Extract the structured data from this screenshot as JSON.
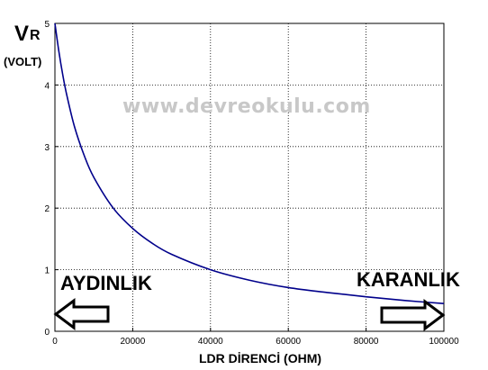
{
  "chart_data": {
    "type": "line",
    "ylabel": "V",
    "ylabel_sub": "R",
    "yunit": "(VOLT)",
    "xlabel": "LDR DİRENCİ (OHM)",
    "xlim": [
      0,
      100000
    ],
    "ylim": [
      0,
      5
    ],
    "xticks": [
      0,
      20000,
      40000,
      60000,
      80000,
      100000
    ],
    "yticks": [
      0,
      1,
      2,
      3,
      4,
      5
    ],
    "grid": true,
    "line_color": "#00008b",
    "series": [
      {
        "x": [
          0,
          1000,
          2000,
          3000,
          5000,
          7500,
          10000,
          15000,
          20000,
          25000,
          30000,
          40000,
          50000,
          60000,
          70000,
          80000,
          90000,
          100000
        ],
        "values": [
          5.0,
          4.55,
          4.17,
          3.85,
          3.33,
          2.86,
          2.5,
          2.0,
          1.67,
          1.43,
          1.25,
          1.0,
          0.83,
          0.71,
          0.63,
          0.56,
          0.5,
          0.45
        ]
      }
    ],
    "annotations": {
      "left": "AYDINLIK",
      "right": "KARANLIK"
    },
    "watermark": "www.devreokulu.com"
  }
}
